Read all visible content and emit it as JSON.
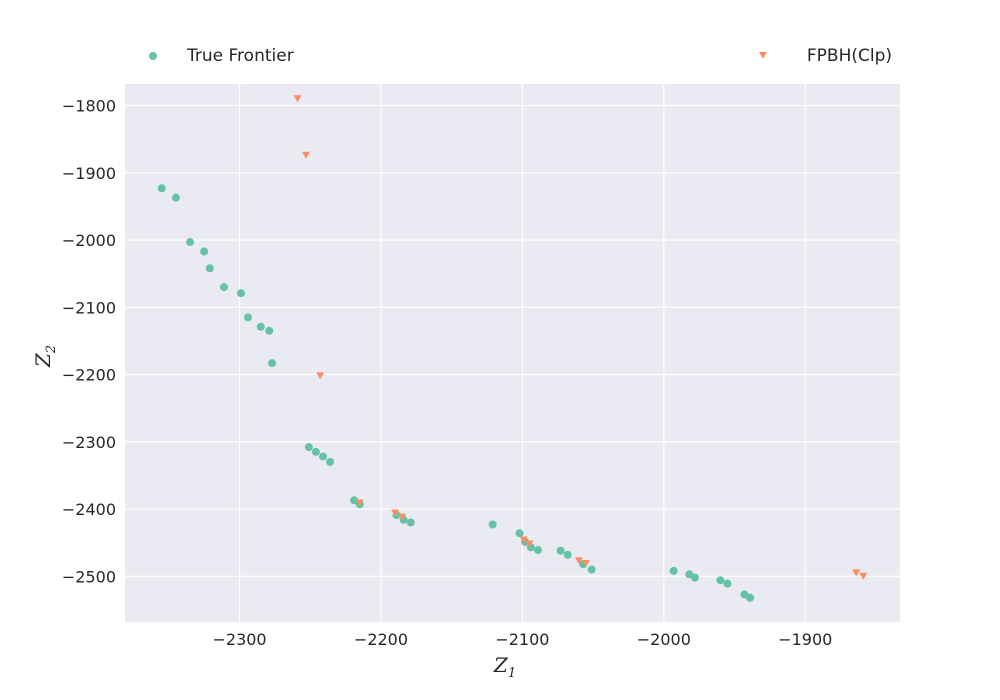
{
  "chart_data": {
    "type": "scatter",
    "xlabel": "Z",
    "xlabel_sub": "1",
    "ylabel": "Z",
    "ylabel_sub": "2",
    "xlim": [
      -2381,
      -1833
    ],
    "ylim": [
      -2568,
      -1768
    ],
    "x_ticks": [
      -2300,
      -2200,
      -2100,
      -2000,
      -1900
    ],
    "y_ticks": [
      -1800,
      -1900,
      -2000,
      -2100,
      -2200,
      -2300,
      -2400,
      -2500
    ],
    "x_tick_labels": [
      "−2300",
      "−2200",
      "−2100",
      "−2000",
      "−1900"
    ],
    "y_tick_labels": [
      "−1800",
      "−1900",
      "−2000",
      "−2100",
      "−2200",
      "−2300",
      "−2400",
      "−2500"
    ],
    "grid": true,
    "legend_placement": "top",
    "style": {
      "background": "#EAEAF2",
      "grid_color": "#FFFFFF",
      "true_frontier_color": "#66C2A5",
      "fpbh_color": "#FC8D62"
    },
    "series": [
      {
        "name": "True Frontier",
        "marker": "circle",
        "color": "#66C2A5",
        "points": [
          [
            -2355,
            -1923
          ],
          [
            -2345,
            -1937
          ],
          [
            -2335,
            -2003
          ],
          [
            -2325,
            -2017
          ],
          [
            -2321,
            -2042
          ],
          [
            -2311,
            -2070
          ],
          [
            -2299,
            -2079
          ],
          [
            -2294,
            -2115
          ],
          [
            -2285,
            -2129
          ],
          [
            -2279,
            -2135
          ],
          [
            -2277,
            -2183
          ],
          [
            -2251,
            -2308
          ],
          [
            -2246,
            -2315
          ],
          [
            -2241,
            -2322
          ],
          [
            -2236,
            -2330
          ],
          [
            -2219,
            -2387
          ],
          [
            -2215,
            -2393
          ],
          [
            -2189,
            -2409
          ],
          [
            -2184,
            -2416
          ],
          [
            -2179,
            -2420
          ],
          [
            -2121,
            -2423
          ],
          [
            -2102,
            -2436
          ],
          [
            -2098,
            -2449
          ],
          [
            -2094,
            -2457
          ],
          [
            -2089,
            -2461
          ],
          [
            -2073,
            -2462
          ],
          [
            -2068,
            -2468
          ],
          [
            -2057,
            -2482
          ],
          [
            -2051,
            -2490
          ],
          [
            -1993,
            -2492
          ],
          [
            -1982,
            -2497
          ],
          [
            -1978,
            -2502
          ],
          [
            -1960,
            -2506
          ],
          [
            -1955,
            -2511
          ],
          [
            -1943,
            -2527
          ],
          [
            -1939,
            -2532
          ]
        ]
      },
      {
        "name": "FPBH(Clp)",
        "marker": "triangle-down",
        "color": "#FC8D62",
        "points": [
          [
            -2259,
            -1790
          ],
          [
            -2253,
            -1874
          ],
          [
            -2243,
            -2202
          ],
          [
            -2215,
            -2391
          ],
          [
            -2190,
            -2406
          ],
          [
            -2185,
            -2412
          ],
          [
            -2099,
            -2446
          ],
          [
            -2095,
            -2452
          ],
          [
            -2060,
            -2477
          ],
          [
            -2055,
            -2481
          ],
          [
            -1864,
            -2495
          ],
          [
            -1859,
            -2500
          ]
        ]
      }
    ]
  }
}
